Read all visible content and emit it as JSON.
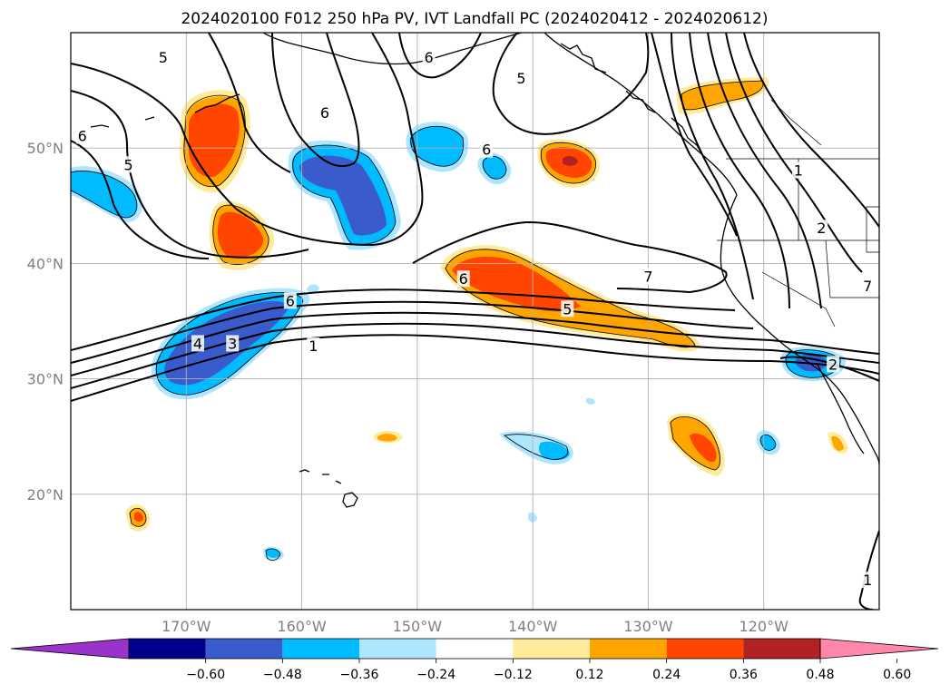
{
  "title": "2024020100 F012 250 hPa PV, IVT Landfall PC (2024020412 - 2024020612)",
  "map": {
    "lon_range": [
      -180,
      -110
    ],
    "lat_range": [
      10,
      60
    ],
    "lon_ticks": [
      {
        "lon": -170,
        "label": "170°W"
      },
      {
        "lon": -160,
        "label": "160°W"
      },
      {
        "lon": -150,
        "label": "150°W"
      },
      {
        "lon": -140,
        "label": "140°W"
      },
      {
        "lon": -130,
        "label": "130°W"
      },
      {
        "lon": -120,
        "label": "120°W"
      }
    ],
    "lat_ticks": [
      {
        "lat": 20,
        "label": "20°N"
      },
      {
        "lat": 30,
        "label": "30°N"
      },
      {
        "lat": 40,
        "label": "40°N"
      },
      {
        "lat": 50,
        "label": "50°N"
      }
    ],
    "gridlines": true,
    "coastlines": true,
    "state_borders": true
  },
  "colorbar": {
    "orientation": "horizontal",
    "extend": "both",
    "colors": [
      "#9933cc",
      "#00008b",
      "#3a5bcc",
      "#00bbff",
      "#aee6ff",
      "#ffffff",
      "#ffeb99",
      "#ffa500",
      "#ff4500",
      "#b22222",
      "#ff88aa"
    ],
    "boundaries": [
      {
        "value": -0.6,
        "label": "−0.60"
      },
      {
        "value": -0.48,
        "label": "−0.48"
      },
      {
        "value": -0.36,
        "label": "−0.36"
      },
      {
        "value": -0.24,
        "label": "−0.24"
      },
      {
        "value": -0.12,
        "label": "−0.12"
      },
      {
        "value": 0.12,
        "label": "0.12"
      },
      {
        "value": 0.24,
        "label": "0.24"
      },
      {
        "value": 0.36,
        "label": "0.36"
      },
      {
        "value": 0.48,
        "label": "0.48"
      },
      {
        "value": 0.6,
        "label": "0.60"
      }
    ]
  },
  "pv_contours": {
    "units": "PVU",
    "labels": [
      {
        "text": "1",
        "lon": -159,
        "lat": 32.8
      },
      {
        "text": "3",
        "lon": -166,
        "lat": 33
      },
      {
        "text": "4",
        "lon": -169,
        "lat": 33
      },
      {
        "text": "6",
        "lon": -161,
        "lat": 36.7
      },
      {
        "text": "6",
        "lon": -146,
        "lat": 38.6
      },
      {
        "text": "5",
        "lon": -137,
        "lat": 36
      },
      {
        "text": "7",
        "lon": -130,
        "lat": 38.8
      },
      {
        "text": "5",
        "lon": -175,
        "lat": 48.5
      },
      {
        "text": "5",
        "lon": -172,
        "lat": 57.8
      },
      {
        "text": "6",
        "lon": -179,
        "lat": 51
      },
      {
        "text": "6",
        "lon": -158,
        "lat": 53
      },
      {
        "text": "6",
        "lon": -144,
        "lat": 49.8
      },
      {
        "text": "6",
        "lon": -149,
        "lat": 57.8
      },
      {
        "text": "5",
        "lon": -141,
        "lat": 56
      },
      {
        "text": "1",
        "lon": -117,
        "lat": 48
      },
      {
        "text": "2",
        "lon": -115,
        "lat": 43
      },
      {
        "text": "7",
        "lon": -111,
        "lat": 38
      },
      {
        "text": "2",
        "lon": -114,
        "lat": 31.2
      },
      {
        "text": "1",
        "lon": -111,
        "lat": 12.5
      }
    ]
  },
  "anomaly_features": [
    {
      "sign": "positive",
      "peak": 0.4,
      "lon": -171,
      "lat": 51
    },
    {
      "sign": "positive",
      "peak": 0.38,
      "lon": -167,
      "lat": 43
    },
    {
      "sign": "positive",
      "peak": 0.5,
      "lon": -137,
      "lat": 48.5
    },
    {
      "sign": "positive",
      "peak": 0.3,
      "lon": -124,
      "lat": 56
    },
    {
      "sign": "positive",
      "peak": 0.4,
      "lon": -140,
      "lat": 37
    },
    {
      "sign": "positive",
      "peak": 0.36,
      "lon": -125,
      "lat": 25
    },
    {
      "sign": "positive",
      "peak": 0.3,
      "lon": -174.5,
      "lat": 18
    },
    {
      "sign": "negative",
      "peak": -0.4,
      "lon": -157,
      "lat": 47
    },
    {
      "sign": "negative",
      "peak": -0.4,
      "lon": -166,
      "lat": 33
    },
    {
      "sign": "negative",
      "peak": -0.36,
      "lon": -116,
      "lat": 31.5
    },
    {
      "sign": "negative",
      "peak": -0.28,
      "lon": -177,
      "lat": 47
    },
    {
      "sign": "negative",
      "peak": -0.28,
      "lon": -147,
      "lat": 50
    },
    {
      "sign": "negative",
      "peak": -0.28,
      "lon": -140,
      "lat": 24.5
    }
  ]
}
